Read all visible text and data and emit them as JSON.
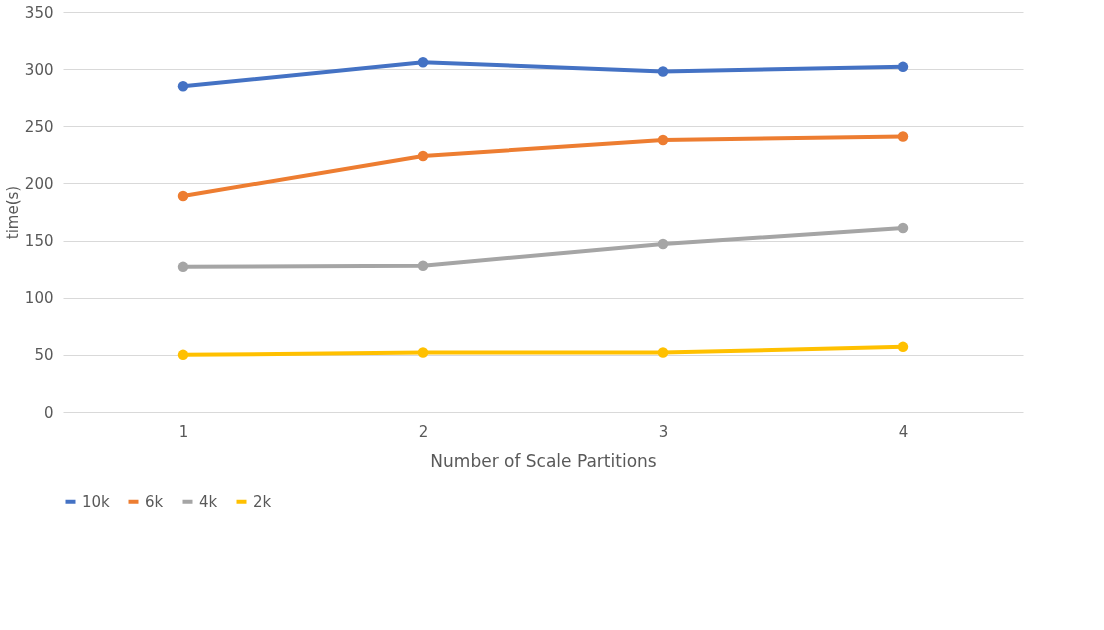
{
  "chart_data": {
    "type": "line",
    "xlabel": "Number of Scale Partitions",
    "ylabel": "time(s)",
    "categories": [
      "1",
      "2",
      "3",
      "4"
    ],
    "series": [
      {
        "name": "10k",
        "color": "#4472c4",
        "values": [
          285,
          306,
          298,
          302
        ]
      },
      {
        "name": "6k",
        "color": "#ed7d31",
        "values": [
          189,
          224,
          238,
          241
        ]
      },
      {
        "name": "4k",
        "color": "#a5a5a5",
        "values": [
          127,
          128,
          147,
          161
        ]
      },
      {
        "name": "2k",
        "color": "#ffc000",
        "values": [
          50,
          52,
          52,
          57
        ]
      }
    ],
    "ylim": [
      0,
      350
    ],
    "yticks": [
      0,
      50,
      100,
      150,
      200,
      250,
      300,
      350
    ],
    "grid": "y",
    "legend": "bottom",
    "marker": "circle",
    "line_style": "solid"
  }
}
